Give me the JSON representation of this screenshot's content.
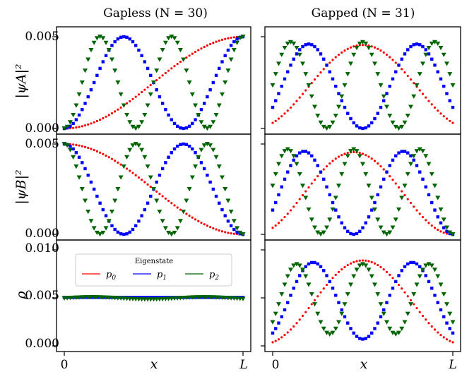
{
  "chart_data": [
    {
      "type": "scatter",
      "panel": "gapless-psiA",
      "column_title": "Gapless (N = 30)",
      "ylabel": "|ψA|²",
      "N": 30,
      "ylim": [
        0,
        0.005
      ],
      "yticks": [
        "0.000",
        "0.005"
      ],
      "xlim": [
        0,
        1
      ],
      "xticks": [
        "",
        ""
      ],
      "series": [
        {
          "name": "p0",
          "color": "#ff0000",
          "marker": "dot",
          "formula": "0.005*sin^2(pi*x/2)"
        },
        {
          "name": "p1",
          "color": "#0000ff",
          "marker": "square",
          "formula": "0.005*sin^2(3*pi*x/2)"
        },
        {
          "name": "p2",
          "color": "#006400",
          "marker": "triangle-down",
          "formula": "0.005*sin^2(5*pi*x/2)"
        }
      ]
    },
    {
      "type": "scatter",
      "panel": "gapped-psiA",
      "column_title": "Gapped (N = 31)",
      "N": 31,
      "ylim": [
        0,
        0.005
      ],
      "xlim": [
        0,
        1
      ],
      "series": [
        {
          "name": "p0",
          "color": "#ff0000",
          "marker": "dot",
          "formula": "0.0045*sin^2(pi*(x+0.1)/1.2)"
        },
        {
          "name": "p1",
          "color": "#0000ff",
          "marker": "square",
          "formula": "0.0046*sin^2(2*pi*(x+0.1)/1.2)"
        },
        {
          "name": "p2",
          "color": "#006400",
          "marker": "triangle-down",
          "formula": "0.0047*sin^2(3*pi*(x+0.1)/1.2)"
        }
      ]
    },
    {
      "type": "scatter",
      "panel": "gapless-psiB",
      "ylabel": "|ψB|²",
      "N": 30,
      "ylim": [
        0,
        0.005
      ],
      "yticks": [
        "0.000",
        "0.005"
      ],
      "xlim": [
        0,
        1
      ],
      "series": [
        {
          "name": "p0",
          "color": "#ff0000",
          "marker": "dot",
          "formula": "0.005*cos^2(pi*x/2)"
        },
        {
          "name": "p1",
          "color": "#0000ff",
          "marker": "square",
          "formula": "0.005*cos^2(3*pi*x/2)"
        },
        {
          "name": "p2",
          "color": "#006400",
          "marker": "triangle-down",
          "formula": "0.005*cos^2(5*pi*x/2)"
        }
      ]
    },
    {
      "type": "scatter",
      "panel": "gapped-psiB",
      "N": 31,
      "ylim": [
        0,
        0.005
      ],
      "xlim": [
        0,
        1
      ],
      "series": [
        {
          "name": "p0",
          "color": "#ff0000",
          "marker": "dot",
          "formula": "0.0045*sin^2(pi*(x+0.1)/1.1)"
        },
        {
          "name": "p1",
          "color": "#0000ff",
          "marker": "square",
          "formula": "0.0046*sin^2(2*pi*(x+0.1)/1.1)"
        },
        {
          "name": "p2",
          "color": "#006400",
          "marker": "triangle-down",
          "formula": "0.0047*sin^2(3*pi*(x+0.1)/1.1)"
        }
      ]
    },
    {
      "type": "scatter",
      "panel": "gapless-rho",
      "ylabel": "ρ",
      "xlabel": "x",
      "N": 30,
      "ylim": [
        0,
        0.01
      ],
      "yticks": [
        "0.000",
        "0.005",
        "0.010"
      ],
      "xlim": [
        0,
        1
      ],
      "xticks": [
        "0",
        "L"
      ],
      "series": [
        {
          "name": "p0",
          "color": "#ff0000",
          "marker": "dot",
          "constant": 0.005
        },
        {
          "name": "p1",
          "color": "#0000ff",
          "marker": "square",
          "constant": 0.005
        },
        {
          "name": "p2",
          "color": "#006400",
          "marker": "triangle-down",
          "constant": 0.005
        }
      ],
      "legend": {
        "title": "Eigenstate",
        "entries": [
          "p0",
          "p1",
          "p2"
        ],
        "placement": "upper-center"
      }
    },
    {
      "type": "scatter",
      "panel": "gapped-rho",
      "xlabel": "x",
      "N": 31,
      "ylim": [
        0,
        0.01
      ],
      "xlim": [
        0,
        1
      ],
      "xticks": [
        "0",
        "L"
      ],
      "series": [
        {
          "name": "p0",
          "color": "#ff0000",
          "marker": "dot",
          "formula": "sum of gapped psiA and psiB p0"
        },
        {
          "name": "p1",
          "color": "#0000ff",
          "marker": "square",
          "formula": "sum of gapped psiA and psiB p1"
        },
        {
          "name": "p2",
          "color": "#006400",
          "marker": "triangle-down",
          "formula": "sum of gapped psiA and psiB p2"
        }
      ]
    }
  ],
  "titles": {
    "left": "Gapless (N = 30)",
    "right": "Gapped (N = 31)"
  },
  "ylabels": {
    "psiA": "|ψA|²",
    "psiB": "|ψB|²",
    "rho": "ρ"
  },
  "xlabel": "x",
  "yticks": {
    "psi": [
      "0.000",
      "0.005"
    ],
    "rho": [
      "0.000",
      "0.005",
      "0.010"
    ]
  },
  "xticks": [
    "0",
    "L"
  ],
  "legend": {
    "title": "Eigenstate",
    "entries": [
      "p0",
      "p1",
      "p2"
    ]
  },
  "colors": {
    "p0": "#ff0000",
    "p1": "#0000ff",
    "p2": "#006400"
  }
}
